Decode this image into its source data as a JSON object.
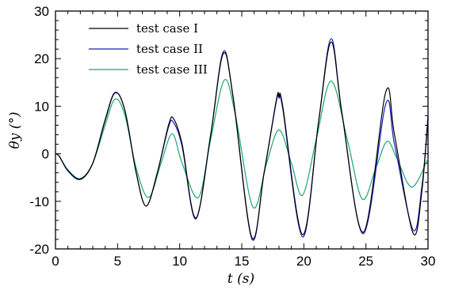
{
  "chart_data": {
    "type": "line",
    "title": "",
    "xlabel": "t (s)",
    "ylabel": "θy (°)",
    "xlim": [
      0,
      30
    ],
    "ylim": [
      -20,
      30
    ],
    "x_ticks": [
      0,
      5,
      10,
      15,
      20,
      25,
      30
    ],
    "y_ticks": [
      -20,
      -10,
      0,
      10,
      20,
      30
    ],
    "grid": false,
    "legend_position": "top-left",
    "series": [
      {
        "name": "test case I",
        "color": "#000000",
        "points": [
          [
            0,
            0
          ],
          [
            0.3,
            -0.5
          ],
          [
            1,
            -3.5
          ],
          [
            2,
            -5.3
          ],
          [
            3,
            -2
          ],
          [
            4,
            7
          ],
          [
            4.8,
            12.8
          ],
          [
            5.6,
            9
          ],
          [
            6.5,
            -4
          ],
          [
            7.3,
            -11
          ],
          [
            8.2,
            -4
          ],
          [
            9.1,
            6
          ],
          [
            9.5,
            7.4
          ],
          [
            10.2,
            2
          ],
          [
            11.3,
            -13.5
          ],
          [
            12.5,
            4
          ],
          [
            13.5,
            21
          ],
          [
            14.3,
            12
          ],
          [
            15.8,
            -17.5
          ],
          [
            16.8,
            -4
          ],
          [
            17.8,
            11.5
          ],
          [
            18,
            12
          ],
          [
            18.3,
            10
          ],
          [
            19.9,
            -17
          ],
          [
            21.2,
            7
          ],
          [
            22.2,
            23.5
          ],
          [
            23.1,
            8
          ],
          [
            24.8,
            -16.5
          ],
          [
            26.6,
            13
          ],
          [
            27.3,
            4
          ],
          [
            28.8,
            -16.7
          ],
          [
            29.5,
            -8
          ],
          [
            30,
            8
          ]
        ]
      },
      {
        "name": "test case II",
        "color": "#1a1ac4",
        "points": [
          [
            0,
            0
          ],
          [
            0.3,
            -0.5
          ],
          [
            1,
            -3.6
          ],
          [
            2,
            -5.4
          ],
          [
            3,
            -2
          ],
          [
            4,
            7.2
          ],
          [
            4.8,
            12.9
          ],
          [
            5.6,
            9
          ],
          [
            6.5,
            -4
          ],
          [
            7.3,
            -11
          ],
          [
            8.2,
            -4
          ],
          [
            9.1,
            5.6
          ],
          [
            9.5,
            6.6
          ],
          [
            10.2,
            1.5
          ],
          [
            11.3,
            -13.7
          ],
          [
            12.5,
            4
          ],
          [
            13.5,
            21.4
          ],
          [
            14.3,
            12
          ],
          [
            15.8,
            -17.8
          ],
          [
            16.8,
            -4
          ],
          [
            17.8,
            11.2
          ],
          [
            18,
            11.7
          ],
          [
            18.3,
            9.5
          ],
          [
            19.9,
            -17.5
          ],
          [
            21.2,
            7
          ],
          [
            22.2,
            24.2
          ],
          [
            23.1,
            8
          ],
          [
            24.8,
            -16.8
          ],
          [
            26.6,
            10.5
          ],
          [
            27.3,
            2
          ],
          [
            28.8,
            -16
          ],
          [
            29.5,
            -7
          ],
          [
            30,
            7
          ]
        ]
      },
      {
        "name": "test case III",
        "color": "#1aa86c",
        "points": [
          [
            0,
            0
          ],
          [
            0.3,
            -0.5
          ],
          [
            1,
            -3.4
          ],
          [
            2,
            -5.2
          ],
          [
            3,
            -2
          ],
          [
            4,
            6
          ],
          [
            4.8,
            11.5
          ],
          [
            5.6,
            8
          ],
          [
            6.5,
            -3
          ],
          [
            7.5,
            -9.2
          ],
          [
            8.5,
            -2
          ],
          [
            9.4,
            4.2
          ],
          [
            10.2,
            -2
          ],
          [
            11.5,
            -9.2
          ],
          [
            12.5,
            3
          ],
          [
            13.6,
            15.5
          ],
          [
            14.5,
            8
          ],
          [
            15.9,
            -11.2
          ],
          [
            17,
            -2
          ],
          [
            18,
            5
          ],
          [
            19,
            -2
          ],
          [
            19.9,
            -8.7
          ],
          [
            21,
            3
          ],
          [
            22.2,
            15.3
          ],
          [
            23.5,
            3
          ],
          [
            24.7,
            -9.5
          ],
          [
            25.8,
            -3
          ],
          [
            26.7,
            2.6
          ],
          [
            27.5,
            -1
          ],
          [
            28.7,
            -7
          ],
          [
            30,
            -1
          ]
        ]
      }
    ]
  }
}
